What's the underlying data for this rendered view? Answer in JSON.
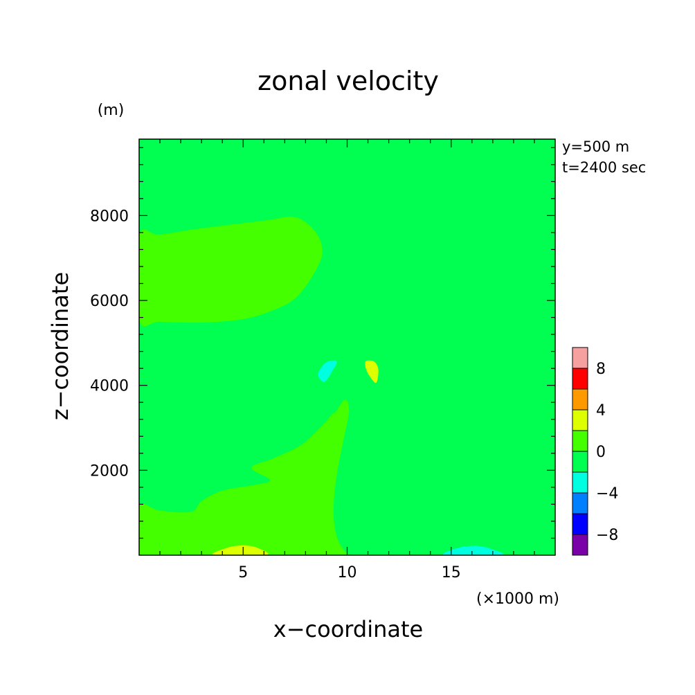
{
  "chart_data": {
    "type": "heatmap",
    "title": "zonal velocity",
    "xlabel": "x−coordinate",
    "ylabel": "z−coordinate",
    "x_units": "(×1000 m)",
    "y_units": "(m)",
    "annotations": [
      "y=500 m",
      "t=2400 sec"
    ],
    "xlim": [
      0,
      20
    ],
    "ylim": [
      0,
      9800
    ],
    "x_ticks": [
      {
        "value": 5,
        "label": "5"
      },
      {
        "value": 10,
        "label": "10"
      },
      {
        "value": 15,
        "label": "15"
      }
    ],
    "y_ticks": [
      {
        "value": 2000,
        "label": "2000"
      },
      {
        "value": 4000,
        "label": "4000"
      },
      {
        "value": 6000,
        "label": "6000"
      },
      {
        "value": 8000,
        "label": "8000"
      }
    ],
    "colorbar": {
      "levels": [
        -10,
        -8,
        -6,
        -4,
        -2,
        0,
        2,
        4,
        6,
        8,
        10
      ],
      "colors": [
        "#7a00a8",
        "#0000ff",
        "#0080ff",
        "#00ffe0",
        "#00ff50",
        "#44ff00",
        "#ddff00",
        "#ff9900",
        "#ff0000",
        "#f7a0a0"
      ],
      "tick_labels": [
        {
          "value": -8,
          "label": "−8"
        },
        {
          "value": -4,
          "label": "−4"
        },
        {
          "value": 0,
          "label": "0"
        },
        {
          "value": 4,
          "label": "4"
        },
        {
          "value": 8,
          "label": "8"
        }
      ]
    },
    "background_value_range": [
      -2,
      0
    ],
    "regions": [
      {
        "name": "positive-band-left-upper",
        "range": [
          0,
          2
        ],
        "polygon": [
          [
            0,
            5550
          ],
          [
            1,
            5500
          ],
          [
            3,
            5480
          ],
          [
            5,
            5560
          ],
          [
            6.5,
            5780
          ],
          [
            7.5,
            6050
          ],
          [
            8.3,
            6550
          ],
          [
            8.8,
            7100
          ],
          [
            8.5,
            7600
          ],
          [
            7.5,
            7960
          ],
          [
            6,
            7880
          ],
          [
            3,
            7700
          ],
          [
            1,
            7550
          ],
          [
            0,
            7520
          ]
        ]
      },
      {
        "name": "negative-band-right-upper",
        "range": [
          -2,
          0
        ],
        "polygon": [
          [
            20,
            5480
          ],
          [
            19,
            5470
          ],
          [
            17,
            5520
          ],
          [
            15,
            5620
          ],
          [
            13.5,
            5850
          ],
          [
            12.5,
            6300
          ],
          [
            11.7,
            6850
          ],
          [
            11.2,
            7200
          ],
          [
            11.3,
            7600
          ],
          [
            12,
            7900
          ],
          [
            13,
            7960
          ],
          [
            15,
            7800
          ],
          [
            17,
            7640
          ],
          [
            20,
            7620
          ]
        ]
      },
      {
        "name": "positive-half-lower-left",
        "range": [
          0,
          2
        ],
        "polygon": [
          [
            0,
            0
          ],
          [
            10.1,
            0
          ],
          [
            10.1,
            3420
          ],
          [
            9.4,
            3360
          ],
          [
            8.8,
            3050
          ],
          [
            7.8,
            2600
          ],
          [
            6.5,
            2290
          ],
          [
            5.4,
            2060
          ],
          [
            6.3,
            1770
          ],
          [
            5.5,
            1650
          ],
          [
            4,
            1520
          ],
          [
            3,
            1270
          ],
          [
            2.5,
            1020
          ],
          [
            1,
            1050
          ],
          [
            0,
            1150
          ]
        ]
      },
      {
        "name": "negative-notch-lower-right",
        "range": [
          -2,
          0
        ],
        "polygon": [
          [
            10.1,
            3420
          ],
          [
            10.6,
            3360
          ],
          [
            11.5,
            3050
          ],
          [
            13,
            2550
          ],
          [
            14.3,
            2300
          ],
          [
            15.5,
            2050
          ],
          [
            14.6,
            1780
          ],
          [
            15.3,
            1680
          ],
          [
            17,
            1520
          ],
          [
            17.8,
            1270
          ],
          [
            18.6,
            1040
          ],
          [
            20,
            1090
          ],
          [
            20,
            0
          ],
          [
            10.1,
            0
          ]
        ]
      },
      {
        "name": "positive-bump-bottom-left",
        "range": [
          2,
          4
        ],
        "polygon": [
          [
            3.6,
            0
          ],
          [
            4.2,
            170
          ],
          [
            5.0,
            230
          ],
          [
            5.7,
            170
          ],
          [
            6.1,
            0
          ]
        ]
      },
      {
        "name": "negative-bump-bottom-right",
        "range": [
          -4,
          -2
        ],
        "polygon": [
          [
            14.7,
            0
          ],
          [
            15.3,
            170
          ],
          [
            16.2,
            220
          ],
          [
            16.9,
            150
          ],
          [
            17.4,
            0
          ]
        ]
      },
      {
        "name": "negative-blob-center-left",
        "range": [
          -4,
          -2
        ],
        "polygon": [
          [
            9.1,
            4570
          ],
          [
            9.5,
            4560
          ],
          [
            9.3,
            4350
          ],
          [
            8.9,
            4080
          ],
          [
            8.6,
            4250
          ],
          [
            8.8,
            4450
          ]
        ]
      },
      {
        "name": "positive-blob-center-right",
        "range": [
          2,
          4
        ],
        "polygon": [
          [
            10.9,
            4570
          ],
          [
            11.3,
            4560
          ],
          [
            11.5,
            4370
          ],
          [
            11.4,
            4060
          ],
          [
            11.1,
            4200
          ],
          [
            10.9,
            4400
          ]
        ]
      }
    ]
  }
}
